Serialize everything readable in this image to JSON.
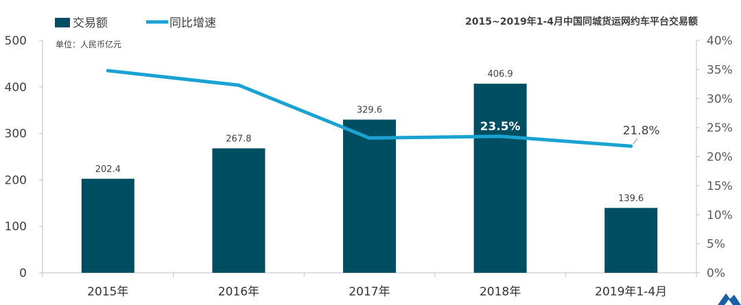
{
  "chart_data": {
    "type": "bar",
    "title": "2015~2019年1-4月中国同城货运网约车平台交易额",
    "unit_label": "单位：人民币亿元",
    "categories": [
      "2015年",
      "2016年",
      "2017年",
      "2018年",
      "2019年1-4月"
    ],
    "series": [
      {
        "name": "交易额",
        "type": "bar",
        "axis": "left",
        "values": [
          202.4,
          267.8,
          329.6,
          406.9,
          139.6
        ],
        "labels": [
          "202.4",
          "267.8",
          "329.6",
          "406.9",
          "139.6"
        ],
        "color": "#004E62"
      },
      {
        "name": "同比增速",
        "type": "line",
        "axis": "right",
        "values": [
          34.8,
          32.3,
          23.2,
          23.5,
          21.8
        ],
        "point_labels": [
          "",
          "",
          "",
          "23.5%",
          "21.8%"
        ],
        "color": "#1AA3D2"
      }
    ],
    "y_left": {
      "min": 0,
      "max": 500,
      "ticks": [
        "0",
        "100",
        "200",
        "300",
        "400",
        "500"
      ]
    },
    "y_right": {
      "min": 0,
      "max": 40,
      "ticks": [
        "0%",
        "5%",
        "10%",
        "15%",
        "20%",
        "25%",
        "30%",
        "35%",
        "40%"
      ]
    },
    "grid": false,
    "legend_position": "top-left"
  }
}
